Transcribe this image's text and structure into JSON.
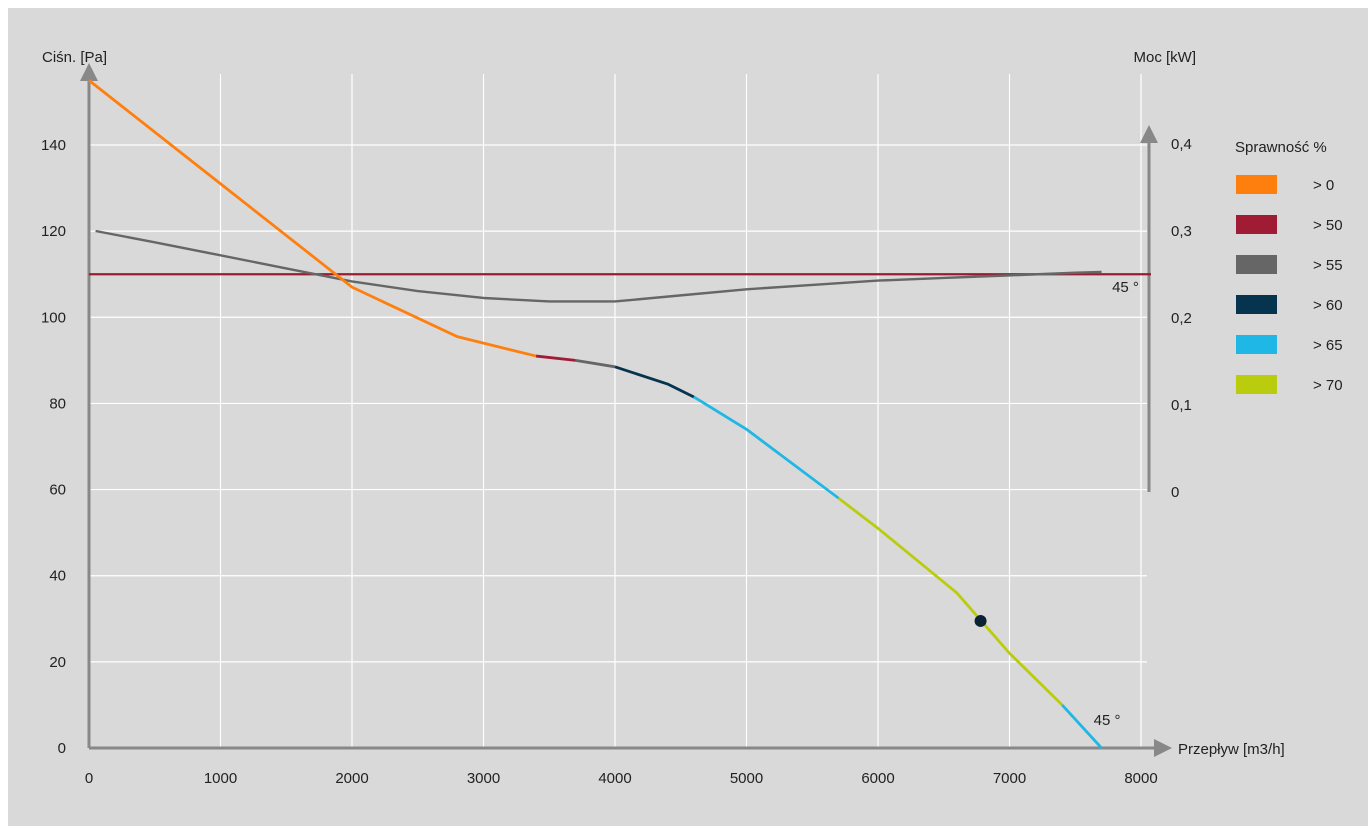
{
  "chart_data": {
    "type": "line",
    "xlabel": "Przepływ [m3/h]",
    "ylabel": "Ciśn. [Pa]",
    "y2label": "Moc [kW]",
    "xlim": [
      0,
      8000
    ],
    "ylim": [
      0,
      155
    ],
    "y2lim": [
      0,
      0.4
    ],
    "x_ticks": [
      "0",
      "1000",
      "2000",
      "3000",
      "4000",
      "5000",
      "6000",
      "7000",
      "8000"
    ],
    "y_ticks": [
      "0",
      "20",
      "40",
      "60",
      "80",
      "100",
      "120",
      "140"
    ],
    "y2_ticks": [
      "0",
      "0,1",
      "0,2",
      "0,3",
      "0,4"
    ],
    "grid": true,
    "legend": {
      "title": "Sprawność %",
      "position": "right",
      "items": [
        {
          "label": "> 0",
          "color": "#ff7f0e"
        },
        {
          "label": "> 50",
          "color": "#a01b34"
        },
        {
          "label": "> 55",
          "color": "#666666"
        },
        {
          "label": "> 60",
          "color": "#06344f"
        },
        {
          "label": "> 65",
          "color": "#1fb7e6"
        },
        {
          "label": "> 70",
          "color": "#b9cc0e"
        }
      ]
    },
    "pressure_curve": [
      {
        "color": "#ff7f0e",
        "points": [
          [
            0,
            155
          ],
          [
            1000,
            131
          ],
          [
            2000,
            107
          ],
          [
            2800,
            95.5
          ],
          [
            3400,
            91
          ]
        ]
      },
      {
        "color": "#a01b34",
        "points": [
          [
            3400,
            91
          ],
          [
            3700,
            90
          ]
        ]
      },
      {
        "color": "#666666",
        "points": [
          [
            3700,
            90
          ],
          [
            4000,
            88.5
          ]
        ]
      },
      {
        "color": "#06344f",
        "points": [
          [
            4000,
            88.5
          ],
          [
            4400,
            84.5
          ],
          [
            4600,
            81.5
          ]
        ]
      },
      {
        "color": "#1fb7e6",
        "points": [
          [
            4600,
            81.5
          ],
          [
            5000,
            74
          ],
          [
            5700,
            58
          ]
        ]
      },
      {
        "color": "#b9cc0e",
        "points": [
          [
            5700,
            58
          ],
          [
            6000,
            51
          ],
          [
            6600,
            36
          ],
          [
            7000,
            22
          ],
          [
            7400,
            10
          ]
        ]
      },
      {
        "color": "#1fb7e6",
        "points": [
          [
            7400,
            10
          ],
          [
            7700,
            0
          ]
        ]
      }
    ],
    "power_curve": {
      "color": "#666666",
      "points": [
        [
          50,
          0.3
        ],
        [
          500,
          0.287
        ],
        [
          1000,
          0.272
        ],
        [
          1500,
          0.257
        ],
        [
          2000,
          0.242
        ],
        [
          2500,
          0.231
        ],
        [
          3000,
          0.223
        ],
        [
          3500,
          0.219
        ],
        [
          4000,
          0.219
        ],
        [
          4500,
          0.226
        ],
        [
          5000,
          0.233
        ],
        [
          5500,
          0.238
        ],
        [
          6000,
          0.243
        ],
        [
          6500,
          0.246
        ],
        [
          7000,
          0.249
        ],
        [
          7500,
          0.252
        ],
        [
          7700,
          0.253
        ]
      ]
    },
    "system_line": {
      "y": 110,
      "color": "#9b1b30"
    },
    "operating_point": {
      "x": 6780,
      "y": 29.5,
      "color": "#0b2233"
    },
    "annotations": [
      {
        "text": "45 °",
        "x": 7780,
        "y": 107
      },
      {
        "text": "45 °",
        "x": 7640,
        "y": 6.5
      }
    ]
  }
}
